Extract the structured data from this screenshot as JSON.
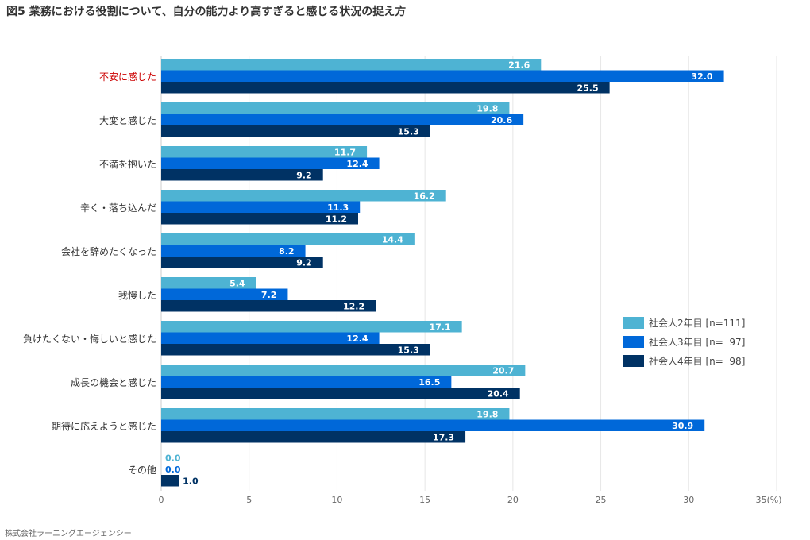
{
  "title": "図5 業務における役割について、自分の能力より高すぎると感じる状況の捉え方",
  "credit": "株式会社ラーニングエージェンシー",
  "chart_data": {
    "type": "bar",
    "orientation": "horizontal",
    "categories": [
      "不安に感じた",
      "大変と感じた",
      "不満を抱いた",
      "辛く・落ち込んだ",
      "会社を辞めたくなった",
      "我慢した",
      "負けたくない・悔しいと感じた",
      "成長の機会と感じた",
      "期待に応えようと感じた",
      "その他"
    ],
    "highlight_category": "不安に感じた",
    "highlight_color": "#cc0000",
    "series": [
      {
        "name": "社会人2年目 [n=111]",
        "color": "#4eb3d3",
        "values": [
          21.6,
          19.8,
          11.7,
          16.2,
          14.4,
          5.4,
          17.1,
          20.7,
          19.8,
          0.0
        ]
      },
      {
        "name": "社会人3年目 [n=  97]",
        "color": "#0068d9",
        "values": [
          32.0,
          20.6,
          12.4,
          11.3,
          8.2,
          7.2,
          12.4,
          16.5,
          30.9,
          0.0
        ]
      },
      {
        "name": "社会人4年目 [n=  98]",
        "color": "#003264",
        "values": [
          25.5,
          15.3,
          9.2,
          11.2,
          9.2,
          12.2,
          15.3,
          20.4,
          17.3,
          1.0
        ]
      }
    ],
    "xlim": [
      0,
      35
    ],
    "xticks": [
      "0",
      "5",
      "10",
      "15",
      "20",
      "25",
      "30",
      "35(%)"
    ],
    "grid": true,
    "legend_position": "right"
  }
}
